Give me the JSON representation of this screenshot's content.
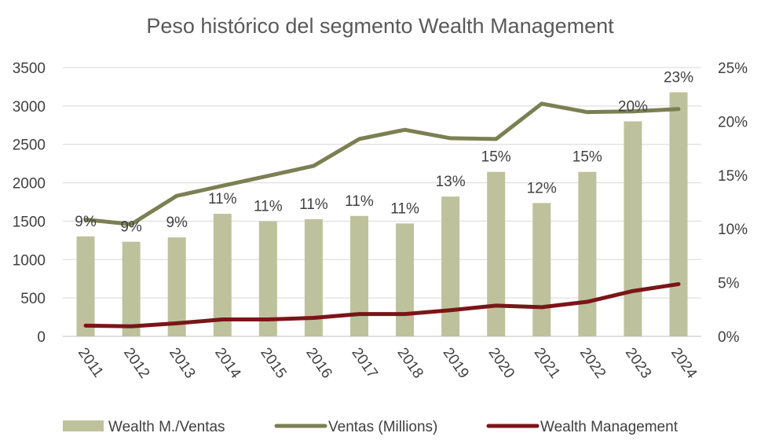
{
  "chart_data": {
    "type": "bar+line",
    "title": "Peso histórico del segmento  Wealth Management",
    "categories": [
      "2011",
      "2012",
      "2013",
      "2014",
      "2015",
      "2016",
      "2017",
      "2018",
      "2019",
      "2020",
      "2021",
      "2022",
      "2023",
      "2024"
    ],
    "left_axis": {
      "min": 0,
      "max": 3500,
      "step": 500,
      "ticks": [
        "0",
        "500",
        "1000",
        "1500",
        "2000",
        "2500",
        "3000",
        "3500"
      ]
    },
    "right_axis": {
      "min": 0,
      "max": 25,
      "step": 5,
      "ticks": [
        "0%",
        "5%",
        "10%",
        "15%",
        "20%",
        "25%"
      ]
    },
    "series": [
      {
        "name": "Wealth M./Ventas",
        "kind": "bar",
        "axis": "right",
        "color": "#BDC29C",
        "values": [
          9.3,
          8.8,
          9.2,
          11.4,
          10.7,
          10.9,
          11.2,
          10.5,
          13.0,
          15.3,
          12.4,
          15.3,
          20.0,
          22.7
        ],
        "labels": [
          "9%",
          "9%",
          "9%",
          "11%",
          "11%",
          "11%",
          "11%",
          "11%",
          "13%",
          "15%",
          "12%",
          "15%",
          "20%",
          "23%"
        ]
      },
      {
        "name": "Ventas (Millions)",
        "kind": "line",
        "axis": "left",
        "color": "#7A8052",
        "values": [
          1520,
          1460,
          1830,
          1960,
          2090,
          2220,
          2570,
          2690,
          2580,
          2570,
          3030,
          2920,
          2930,
          2960
        ]
      },
      {
        "name": "Wealth Management",
        "kind": "line",
        "axis": "left",
        "color": "#7B1518",
        "values": [
          140,
          130,
          170,
          220,
          220,
          240,
          290,
          290,
          340,
          400,
          380,
          450,
          590,
          680
        ]
      }
    ],
    "legend": {
      "position": "bottom",
      "entries": [
        "Wealth M./Ventas",
        "Ventas (Millions)",
        "Wealth Management"
      ]
    },
    "gridlines": true
  }
}
